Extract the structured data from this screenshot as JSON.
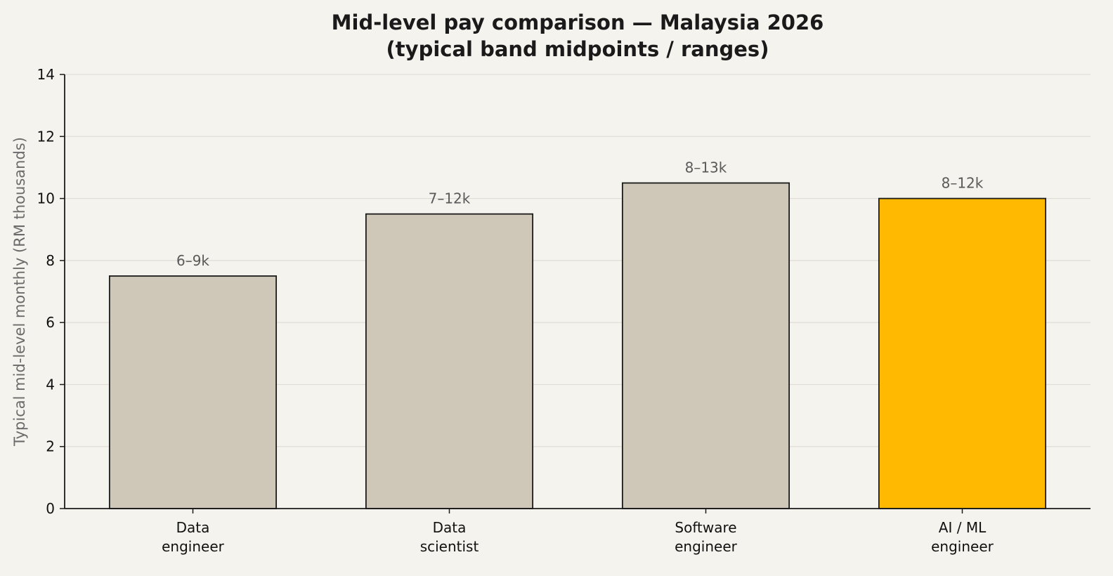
{
  "chart_data": {
    "type": "bar",
    "title_lines": [
      "Mid-level pay comparison — Malaysia 2026",
      "(typical band midpoints / ranges)"
    ],
    "xlabel": "",
    "ylabel": "Typical mid-level monthly (RM thousands)",
    "categories": [
      [
        "Data",
        "engineer"
      ],
      [
        "Data",
        "scientist"
      ],
      [
        "Software",
        "engineer"
      ],
      [
        "AI / ML",
        "engineer"
      ]
    ],
    "values": [
      7.5,
      9.5,
      10.5,
      10.0
    ],
    "data_labels": [
      "6–9k",
      "7–12k",
      "8–13k",
      "8–12k"
    ],
    "highlight_index": 3,
    "ylim": [
      0,
      14
    ],
    "yticks": [
      0,
      2,
      4,
      6,
      8,
      10,
      12,
      14
    ],
    "grid": true,
    "colors": {
      "bar": "#cfc7b7",
      "highlight": "#ffb900",
      "edge": "#1a1a1a",
      "grid": "#e0ddd6",
      "background": "#f5f3ee"
    }
  }
}
